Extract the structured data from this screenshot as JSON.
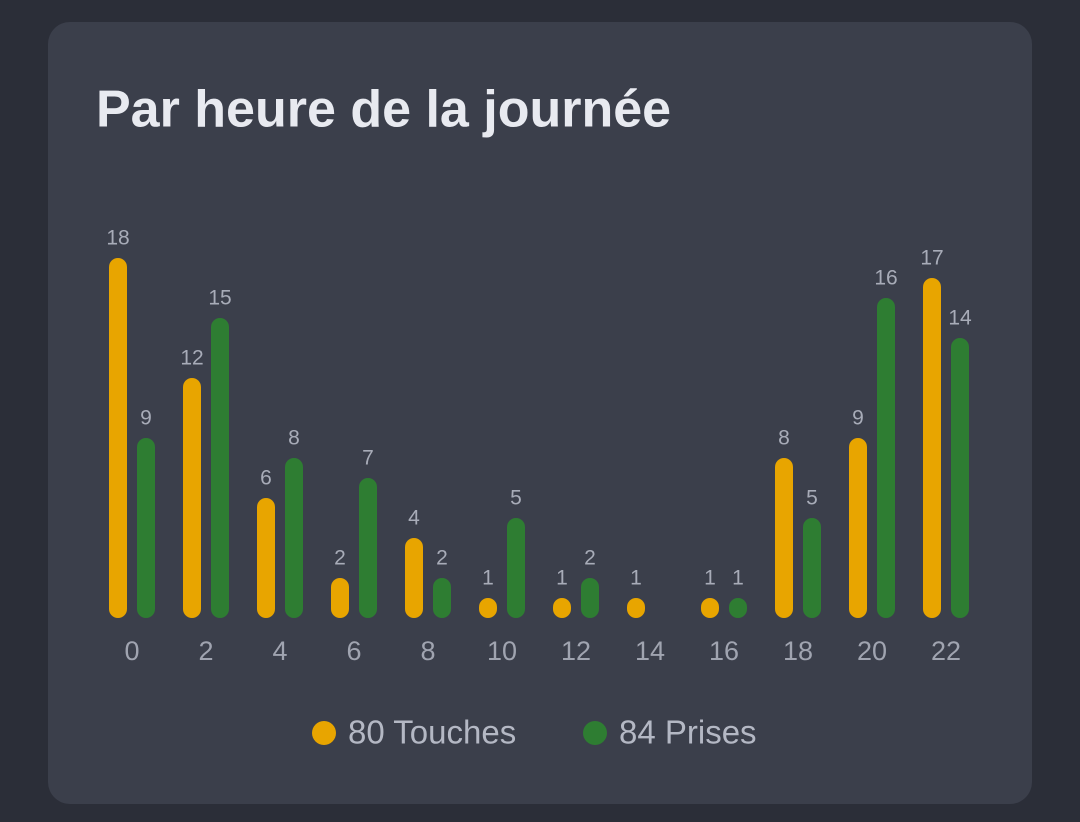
{
  "chart_data": {
    "type": "bar",
    "title": "Par heure de la journée",
    "categories": [
      "0",
      "2",
      "4",
      "6",
      "8",
      "10",
      "12",
      "14",
      "16",
      "18",
      "20",
      "22"
    ],
    "series": [
      {
        "name": "80 Touches",
        "color": "#e8a500",
        "values": [
          18,
          12,
          6,
          2,
          4,
          1,
          1,
          1,
          1,
          8,
          9,
          17
        ]
      },
      {
        "name": "84 Prises",
        "color": "#2e7d32",
        "values": [
          9,
          15,
          8,
          7,
          2,
          5,
          2,
          null,
          1,
          5,
          16,
          14
        ]
      }
    ]
  }
}
